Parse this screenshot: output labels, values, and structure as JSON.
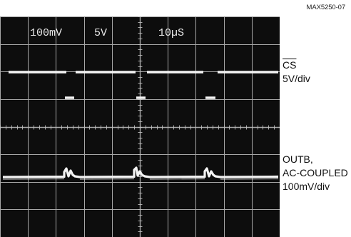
{
  "figure_id": "MAX5250-07",
  "scope_settings": {
    "ch1_scale": "100mV",
    "ch2_scale": "5V",
    "timebase": "10µS"
  },
  "traces": {
    "cs": {
      "name": "CS",
      "scale": "5V/div"
    },
    "outb": {
      "name": "OUTB,",
      "coupling": "AC-COUPLED",
      "scale": "100mV/div"
    }
  },
  "colors": {
    "screen": "#0d0d0d",
    "grid": "#c2c2c2",
    "trace": "#f4f4f4",
    "readout": "#e8e8e8"
  }
}
